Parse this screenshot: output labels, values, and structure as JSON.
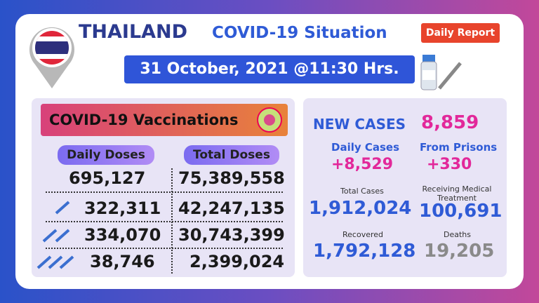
{
  "header": {
    "country": "THAILAND",
    "title": "COVID-19 Situation",
    "badge": "Daily Report",
    "date": "31 October, 2021 @11:30 Hrs."
  },
  "vaccinations": {
    "title": "COVID-19 Vaccinations",
    "columns": [
      "Daily Doses",
      "Total Doses"
    ],
    "rows": [
      [
        "695,127",
        "75,389,558"
      ],
      [
        "322,311",
        "42,247,135"
      ],
      [
        "334,070",
        "30,743,399"
      ],
      [
        "38,746",
        "2,399,024"
      ]
    ]
  },
  "cases": {
    "new_cases": {
      "label": "NEW CASES",
      "value": "8,859"
    },
    "daily_cases": {
      "label": "Daily Cases",
      "value": "+8,529"
    },
    "from_prisons": {
      "label": "From Prisons",
      "value": "+330"
    },
    "total_cases": {
      "label": "Total Cases",
      "value": "1,912,024"
    },
    "receiving_treatment": {
      "label": "Receiving Medical Treatment",
      "value": "100,691"
    },
    "recovered": {
      "label": "Recovered",
      "value": "1,792,128"
    },
    "deaths": {
      "label": "Deaths",
      "value": "19,205"
    }
  }
}
